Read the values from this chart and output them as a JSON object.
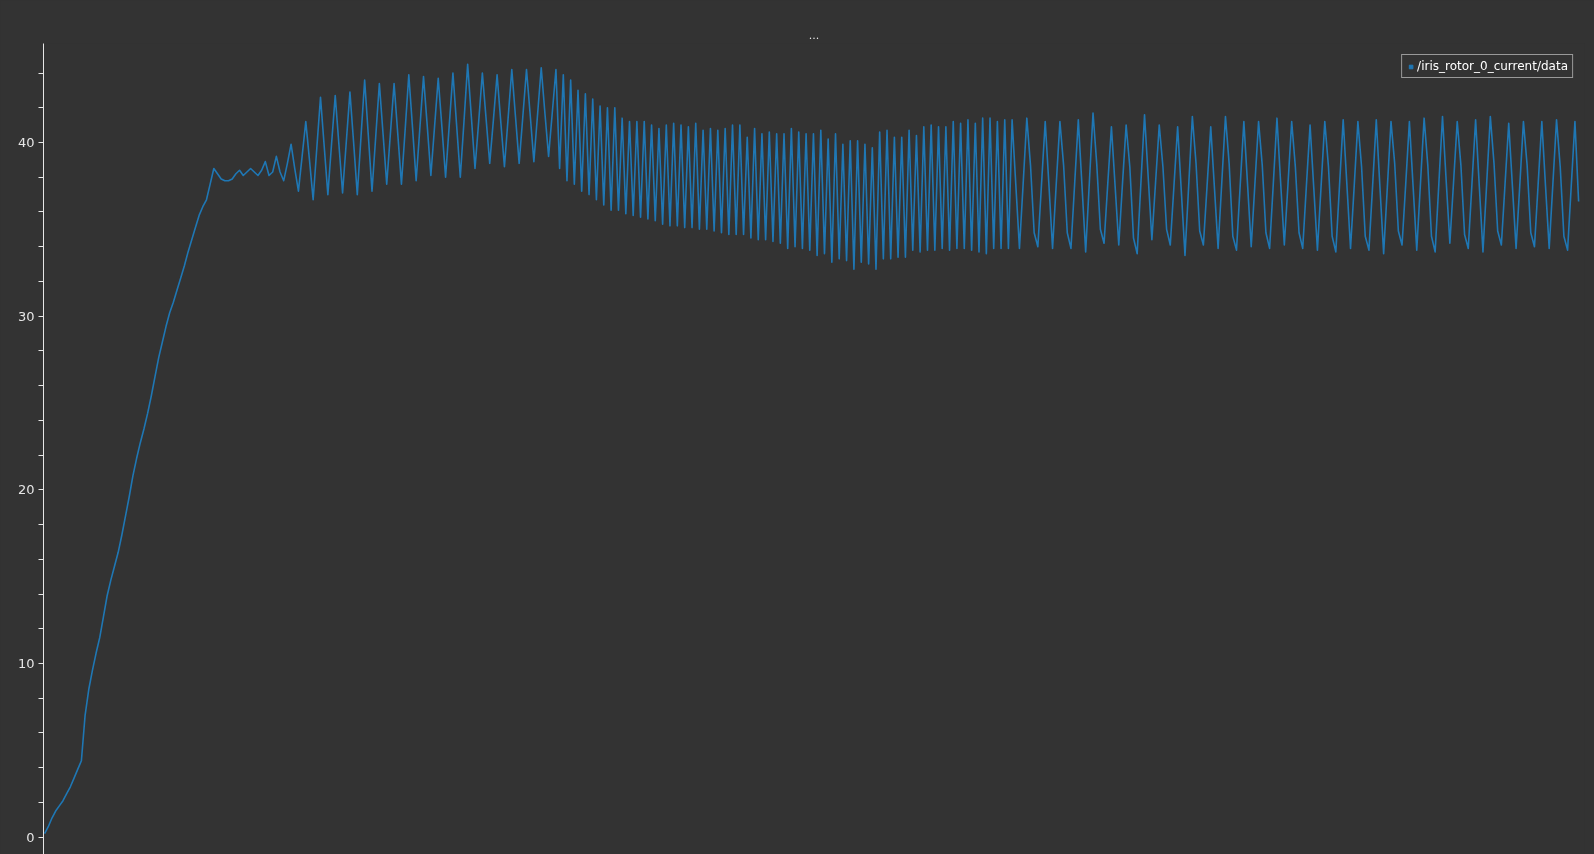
{
  "chart_data": {
    "type": "line",
    "title": "...",
    "tick_labels": "y",
    "legend": "top right",
    "ylim": [
      -1.0,
      45.7
    ],
    "yticks": [
      0,
      {
        "value": 2,
        "label": null
      },
      {
        "value": 4,
        "label": null
      },
      {
        "value": 6,
        "label": null
      },
      {
        "value": 8,
        "label": null
      },
      10,
      {
        "value": 12,
        "label": null
      },
      {
        "value": 14,
        "label": null
      },
      {
        "value": 16,
        "label": null
      },
      {
        "value": 18,
        "label": null
      },
      20,
      {
        "value": 22,
        "label": null
      },
      {
        "value": 24,
        "label": null
      },
      {
        "value": 26,
        "label": null
      },
      {
        "value": 28,
        "label": null
      },
      30,
      {
        "value": 32,
        "label": null
      },
      {
        "value": 34,
        "label": null
      },
      {
        "value": 36,
        "label": null
      },
      {
        "value": 38,
        "label": null
      },
      40,
      {
        "value": 42,
        "label": null
      },
      {
        "value": 44,
        "label": null
      }
    ],
    "categories": [
      null,
      null,
      null,
      null,
      null,
      null,
      null,
      null,
      null,
      null,
      null,
      null,
      null,
      null,
      null,
      null,
      null,
      null,
      null,
      null,
      null,
      null,
      null,
      null,
      null,
      null,
      null,
      null,
      null,
      null,
      null,
      null,
      null,
      null,
      null,
      null,
      null,
      null,
      null,
      null,
      null,
      null,
      null,
      null,
      null,
      null,
      null,
      null,
      null,
      null,
      null,
      null,
      null,
      null,
      null,
      null,
      null,
      null,
      null,
      null,
      null,
      null,
      null,
      null,
      null,
      null,
      null,
      null,
      null,
      null,
      null,
      null,
      null,
      null,
      null,
      null,
      null,
      null,
      null,
      null,
      null,
      null,
      null,
      null,
      null,
      null,
      null,
      null,
      null,
      null,
      null,
      null,
      null,
      null,
      null,
      null,
      null,
      null,
      null,
      null,
      null,
      null,
      null,
      null,
      null,
      null,
      null,
      null,
      null,
      null,
      null,
      null,
      null,
      null,
      null,
      null,
      null,
      null,
      null,
      null,
      null,
      null,
      null,
      null,
      null,
      null,
      null,
      null,
      null,
      null,
      null,
      null,
      null,
      null,
      null,
      null,
      null,
      null,
      null,
      null,
      null,
      null,
      null,
      null,
      null,
      null,
      null,
      null,
      null,
      null,
      null,
      null,
      null,
      null,
      null,
      null,
      null,
      null,
      null,
      null,
      null,
      null,
      null,
      null,
      null,
      null,
      null,
      null,
      null,
      null,
      null,
      null,
      null,
      null,
      null,
      null,
      null,
      null,
      null,
      null,
      null,
      null,
      null,
      null,
      null,
      null,
      null,
      null,
      null,
      null,
      null,
      null,
      null,
      null,
      null,
      null,
      null,
      null,
      null,
      null,
      null,
      null,
      null,
      null,
      null,
      null,
      null,
      null,
      null,
      null,
      null,
      null,
      null,
      null,
      null,
      null,
      null,
      null,
      null,
      null,
      null,
      null,
      null,
      null,
      null,
      null,
      null,
      null,
      null,
      null,
      null,
      null,
      null,
      null,
      null,
      null,
      null,
      null,
      null,
      null,
      null,
      null,
      null,
      null,
      null,
      null,
      null,
      null,
      null,
      null,
      null,
      null,
      null,
      null,
      null,
      null,
      null,
      null,
      null,
      null,
      null,
      null,
      null,
      null,
      null,
      null,
      null,
      null,
      null,
      null,
      null,
      null,
      null,
      null,
      null,
      null,
      null,
      null,
      null,
      null,
      null,
      null,
      null,
      null,
      null,
      null,
      null,
      null,
      null,
      null,
      null,
      null,
      null,
      null,
      null,
      null,
      null,
      null,
      null,
      null,
      null,
      null,
      null,
      null,
      null,
      null,
      null,
      null,
      null,
      null,
      null,
      null,
      null,
      null,
      null,
      null,
      null,
      null,
      null,
      null,
      null,
      null,
      null,
      null,
      null,
      null,
      null,
      null,
      null,
      null,
      null,
      null,
      null,
      null,
      null,
      null,
      null,
      null,
      null,
      null,
      null,
      null,
      null,
      null,
      null,
      null,
      null,
      null,
      null,
      null,
      null,
      null,
      null,
      null,
      null,
      null,
      null,
      null,
      null,
      null,
      null,
      null,
      null,
      null,
      null,
      null,
      null,
      null,
      null,
      null,
      null,
      null,
      null,
      null,
      null,
      null,
      null,
      null,
      null,
      null,
      null,
      null,
      null,
      null,
      null,
      null,
      null,
      null,
      null,
      null,
      null,
      null,
      null,
      null,
      null,
      null,
      null,
      null,
      null,
      null,
      null,
      null,
      null,
      null,
      null,
      null,
      null,
      null,
      null,
      null,
      null,
      null,
      null,
      null,
      null,
      null,
      null,
      null
    ],
    "series": [
      {
        "name": "/iris_rotor_0_current/data",
        "color": "#1f77b4",
        "values": [
          0.2,
          0.6,
          1.1,
          1.5,
          1.8,
          2.1,
          2.5,
          2.9,
          3.4,
          3.9,
          4.4,
          7.0,
          8.5,
          9.6,
          10.6,
          11.5,
          12.7,
          13.9,
          14.8,
          15.6,
          16.4,
          17.4,
          18.5,
          19.6,
          20.8,
          21.8,
          22.7,
          23.5,
          24.4,
          25.4,
          26.5,
          27.6,
          28.5,
          29.4,
          30.2,
          30.8,
          31.5,
          32.2,
          32.9,
          33.7,
          34.4,
          35.1,
          35.8,
          36.3,
          36.7,
          37.6,
          38.5,
          38.2,
          37.9,
          37.8,
          37.8,
          37.9,
          38.2,
          38.4,
          38.1,
          38.3,
          38.5,
          38.3,
          38.1,
          38.4,
          38.9,
          38.1,
          38.3,
          39.2,
          38.3,
          37.8,
          38.8,
          39.9,
          38.5,
          37.2,
          39.2,
          41.2,
          39.0,
          36.7,
          39.7,
          42.6,
          39.8,
          37.0,
          39.9,
          42.7,
          39.9,
          37.1,
          40.0,
          42.9,
          40.0,
          37.0,
          40.3,
          43.6,
          40.4,
          37.2,
          40.3,
          43.4,
          40.5,
          37.6,
          40.5,
          43.4,
          40.5,
          37.6,
          40.7,
          43.9,
          40.9,
          37.8,
          40.8,
          43.8,
          41.0,
          38.1,
          40.9,
          43.7,
          40.9,
          38.0,
          41.0,
          44.0,
          41.0,
          38.0,
          41.2,
          44.5,
          41.5,
          38.5,
          41.2,
          44.0,
          41.4,
          38.8,
          41.3,
          43.9,
          41.2,
          38.6,
          41.4,
          44.2,
          41.5,
          38.8,
          41.5,
          44.2,
          41.6,
          38.9,
          41.6,
          44.3,
          41.7,
          39.2,
          41.7,
          44.2,
          38.5,
          43.9,
          37.8,
          43.6,
          37.6,
          43.0,
          37.2,
          42.8,
          37.0,
          42.5,
          36.7,
          42.1,
          36.4,
          42.0,
          36.1,
          42.0,
          36.1,
          41.4,
          35.9,
          41.2,
          35.8,
          41.2,
          35.7,
          41.2,
          35.6,
          41.0,
          35.5,
          40.8,
          35.3,
          41.0,
          35.2,
          41.1,
          35.2,
          41.0,
          35.1,
          40.9,
          35.1,
          41.1,
          35.0,
          40.7,
          35.0,
          40.8,
          34.9,
          40.7,
          34.8,
          40.8,
          34.7,
          41.0,
          34.7,
          41.0,
          34.7,
          40.3,
          34.5,
          40.8,
          34.4,
          40.5,
          34.4,
          40.6,
          34.3,
          40.5,
          34.2,
          40.5,
          33.9,
          40.8,
          34.0,
          40.6,
          33.9,
          40.5,
          33.8,
          40.5,
          33.5,
          40.7,
          33.6,
          40.2,
          33.1,
          40.5,
          33.3,
          39.9,
          33.2,
          40.1,
          32.7,
          40.1,
          33.1,
          39.9,
          33.0,
          39.7,
          32.7,
          40.6,
          33.3,
          40.7,
          33.3,
          40.3,
          33.4,
          40.3,
          33.4,
          40.7,
          33.8,
          40.4,
          33.7,
          40.9,
          33.8,
          41.0,
          33.8,
          40.9,
          33.9,
          40.9,
          33.8,
          41.2,
          33.9,
          41.1,
          33.9,
          41.3,
          33.8,
          41.1,
          33.7,
          41.4,
          33.6,
          41.4,
          33.9,
          41.2,
          33.9,
          41.3,
          33.9,
          41.3,
          37.6,
          33.9,
          37.6,
          41.4,
          38.7,
          34.8,
          34.0,
          37.6,
          41.2,
          37.6,
          33.9,
          37.6,
          41.2,
          38.7,
          34.8,
          33.9,
          37.6,
          41.3,
          37.5,
          33.7,
          37.7,
          41.7,
          38.8,
          35.0,
          34.2,
          37.6,
          40.9,
          37.5,
          34.1,
          37.6,
          41.0,
          38.6,
          34.5,
          33.6,
          37.6,
          41.6,
          38.0,
          34.4,
          37.7,
          41.0,
          38.6,
          35.0,
          34.1,
          37.5,
          40.9,
          37.2,
          33.5,
          37.5,
          41.5,
          38.8,
          34.9,
          34.1,
          37.5,
          40.9,
          37.4,
          33.9,
          37.7,
          41.5,
          38.8,
          34.6,
          33.8,
          37.5,
          41.2,
          37.6,
          34.0,
          37.6,
          41.2,
          38.7,
          34.8,
          33.9,
          37.6,
          41.4,
          37.7,
          34.1,
          37.6,
          41.2,
          38.6,
          34.8,
          33.9,
          37.5,
          41.0,
          37.4,
          33.8,
          37.5,
          41.2,
          38.6,
          34.6,
          33.7,
          37.5,
          41.3,
          37.6,
          33.9,
          37.5,
          41.2,
          38.6,
          34.6,
          33.8,
          37.5,
          41.3,
          37.4,
          33.6,
          37.4,
          41.2,
          38.8,
          34.9,
          34.1,
          37.6,
          41.2,
          37.5,
          33.8,
          37.6,
          41.4,
          38.7,
          34.6,
          33.7,
          37.6,
          41.5,
          37.8,
          34.2,
          37.7,
          41.2,
          38.7,
          34.7,
          33.9,
          37.6,
          41.3,
          37.5,
          33.7,
          37.6,
          41.5,
          38.8,
          34.9,
          34.1,
          37.6,
          41.1,
          37.5,
          33.9,
          37.5,
          41.2,
          38.7,
          34.8,
          34.0,
          37.6,
          41.2,
          37.5,
          33.9,
          37.6,
          41.3,
          38.6,
          34.6,
          33.8,
          37.5,
          41.2,
          36.6
        ]
      }
    ]
  }
}
